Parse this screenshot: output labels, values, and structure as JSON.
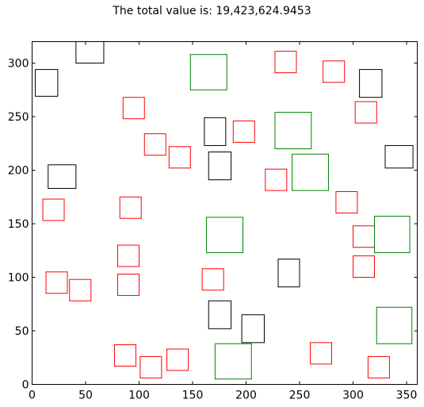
{
  "chart_data": {
    "type": "scatter",
    "title": "The total value is: 19,423,624.9453",
    "xlabel": "",
    "ylabel": "",
    "xlim": [
      0,
      360
    ],
    "ylim": [
      0,
      320
    ],
    "grid": false,
    "xticks": [
      0,
      50,
      100,
      150,
      200,
      250,
      300,
      350
    ],
    "yticks": [
      0,
      50,
      100,
      150,
      200,
      250,
      300
    ],
    "colors": {
      "black": "#000000",
      "red": "#ff0000",
      "green": "#008000"
    },
    "series": [
      {
        "color": "#000000",
        "rects": [
          {
            "x0": 3,
            "x1": 24,
            "y0": 269,
            "y1": 294
          },
          {
            "x0": 41,
            "x1": 67,
            "y0": 300,
            "y1": 322
          },
          {
            "x0": 15,
            "x1": 41,
            "y0": 183,
            "y1": 205
          },
          {
            "x0": 161,
            "x1": 181,
            "y0": 223,
            "y1": 249
          },
          {
            "x0": 165,
            "x1": 186,
            "y0": 191,
            "y1": 217
          },
          {
            "x0": 306,
            "x1": 327,
            "y0": 268,
            "y1": 294
          },
          {
            "x0": 330,
            "x1": 356,
            "y0": 202,
            "y1": 223
          },
          {
            "x0": 230,
            "x1": 250,
            "y0": 91,
            "y1": 117
          },
          {
            "x0": 165,
            "x1": 186,
            "y0": 52,
            "y1": 78
          },
          {
            "x0": 196,
            "x1": 217,
            "y0": 39,
            "y1": 65
          }
        ]
      },
      {
        "color": "#ff0000",
        "rects": [
          {
            "x0": 10,
            "x1": 30,
            "y0": 153,
            "y1": 173
          },
          {
            "x0": 13,
            "x1": 33,
            "y0": 85,
            "y1": 105
          },
          {
            "x0": 35,
            "x1": 55,
            "y0": 78,
            "y1": 98
          },
          {
            "x0": 77,
            "x1": 97,
            "y0": 17,
            "y1": 37
          },
          {
            "x0": 101,
            "x1": 121,
            "y0": 6,
            "y1": 26
          },
          {
            "x0": 126,
            "x1": 146,
            "y0": 13,
            "y1": 33
          },
          {
            "x0": 80,
            "x1": 100,
            "y0": 83,
            "y1": 103
          },
          {
            "x0": 80,
            "x1": 100,
            "y0": 110,
            "y1": 130
          },
          {
            "x0": 82,
            "x1": 102,
            "y0": 155,
            "y1": 175
          },
          {
            "x0": 85,
            "x1": 105,
            "y0": 248,
            "y1": 268
          },
          {
            "x0": 105,
            "x1": 125,
            "y0": 214,
            "y1": 234
          },
          {
            "x0": 128,
            "x1": 148,
            "y0": 202,
            "y1": 222
          },
          {
            "x0": 159,
            "x1": 179,
            "y0": 88,
            "y1": 108
          },
          {
            "x0": 188,
            "x1": 208,
            "y0": 226,
            "y1": 246
          },
          {
            "x0": 218,
            "x1": 238,
            "y0": 181,
            "y1": 201
          },
          {
            "x0": 227,
            "x1": 247,
            "y0": 291,
            "y1": 311
          },
          {
            "x0": 272,
            "x1": 292,
            "y0": 282,
            "y1": 302
          },
          {
            "x0": 260,
            "x1": 280,
            "y0": 19,
            "y1": 39
          },
          {
            "x0": 284,
            "x1": 304,
            "y0": 160,
            "y1": 180
          },
          {
            "x0": 300,
            "x1": 320,
            "y0": 128,
            "y1": 148
          },
          {
            "x0": 300,
            "x1": 320,
            "y0": 100,
            "y1": 120
          },
          {
            "x0": 302,
            "x1": 322,
            "y0": 244,
            "y1": 264
          },
          {
            "x0": 314,
            "x1": 334,
            "y0": 6,
            "y1": 26
          }
        ]
      },
      {
        "color": "#008000",
        "rects": [
          {
            "x0": 148,
            "x1": 182,
            "y0": 275,
            "y1": 308
          },
          {
            "x0": 227,
            "x1": 261,
            "y0": 220,
            "y1": 254
          },
          {
            "x0": 243,
            "x1": 277,
            "y0": 181,
            "y1": 215
          },
          {
            "x0": 163,
            "x1": 197,
            "y0": 123,
            "y1": 156
          },
          {
            "x0": 171,
            "x1": 205,
            "y0": 5,
            "y1": 38
          },
          {
            "x0": 320,
            "x1": 353,
            "y0": 123,
            "y1": 157
          },
          {
            "x0": 322,
            "x1": 355,
            "y0": 38,
            "y1": 72
          }
        ]
      }
    ]
  }
}
